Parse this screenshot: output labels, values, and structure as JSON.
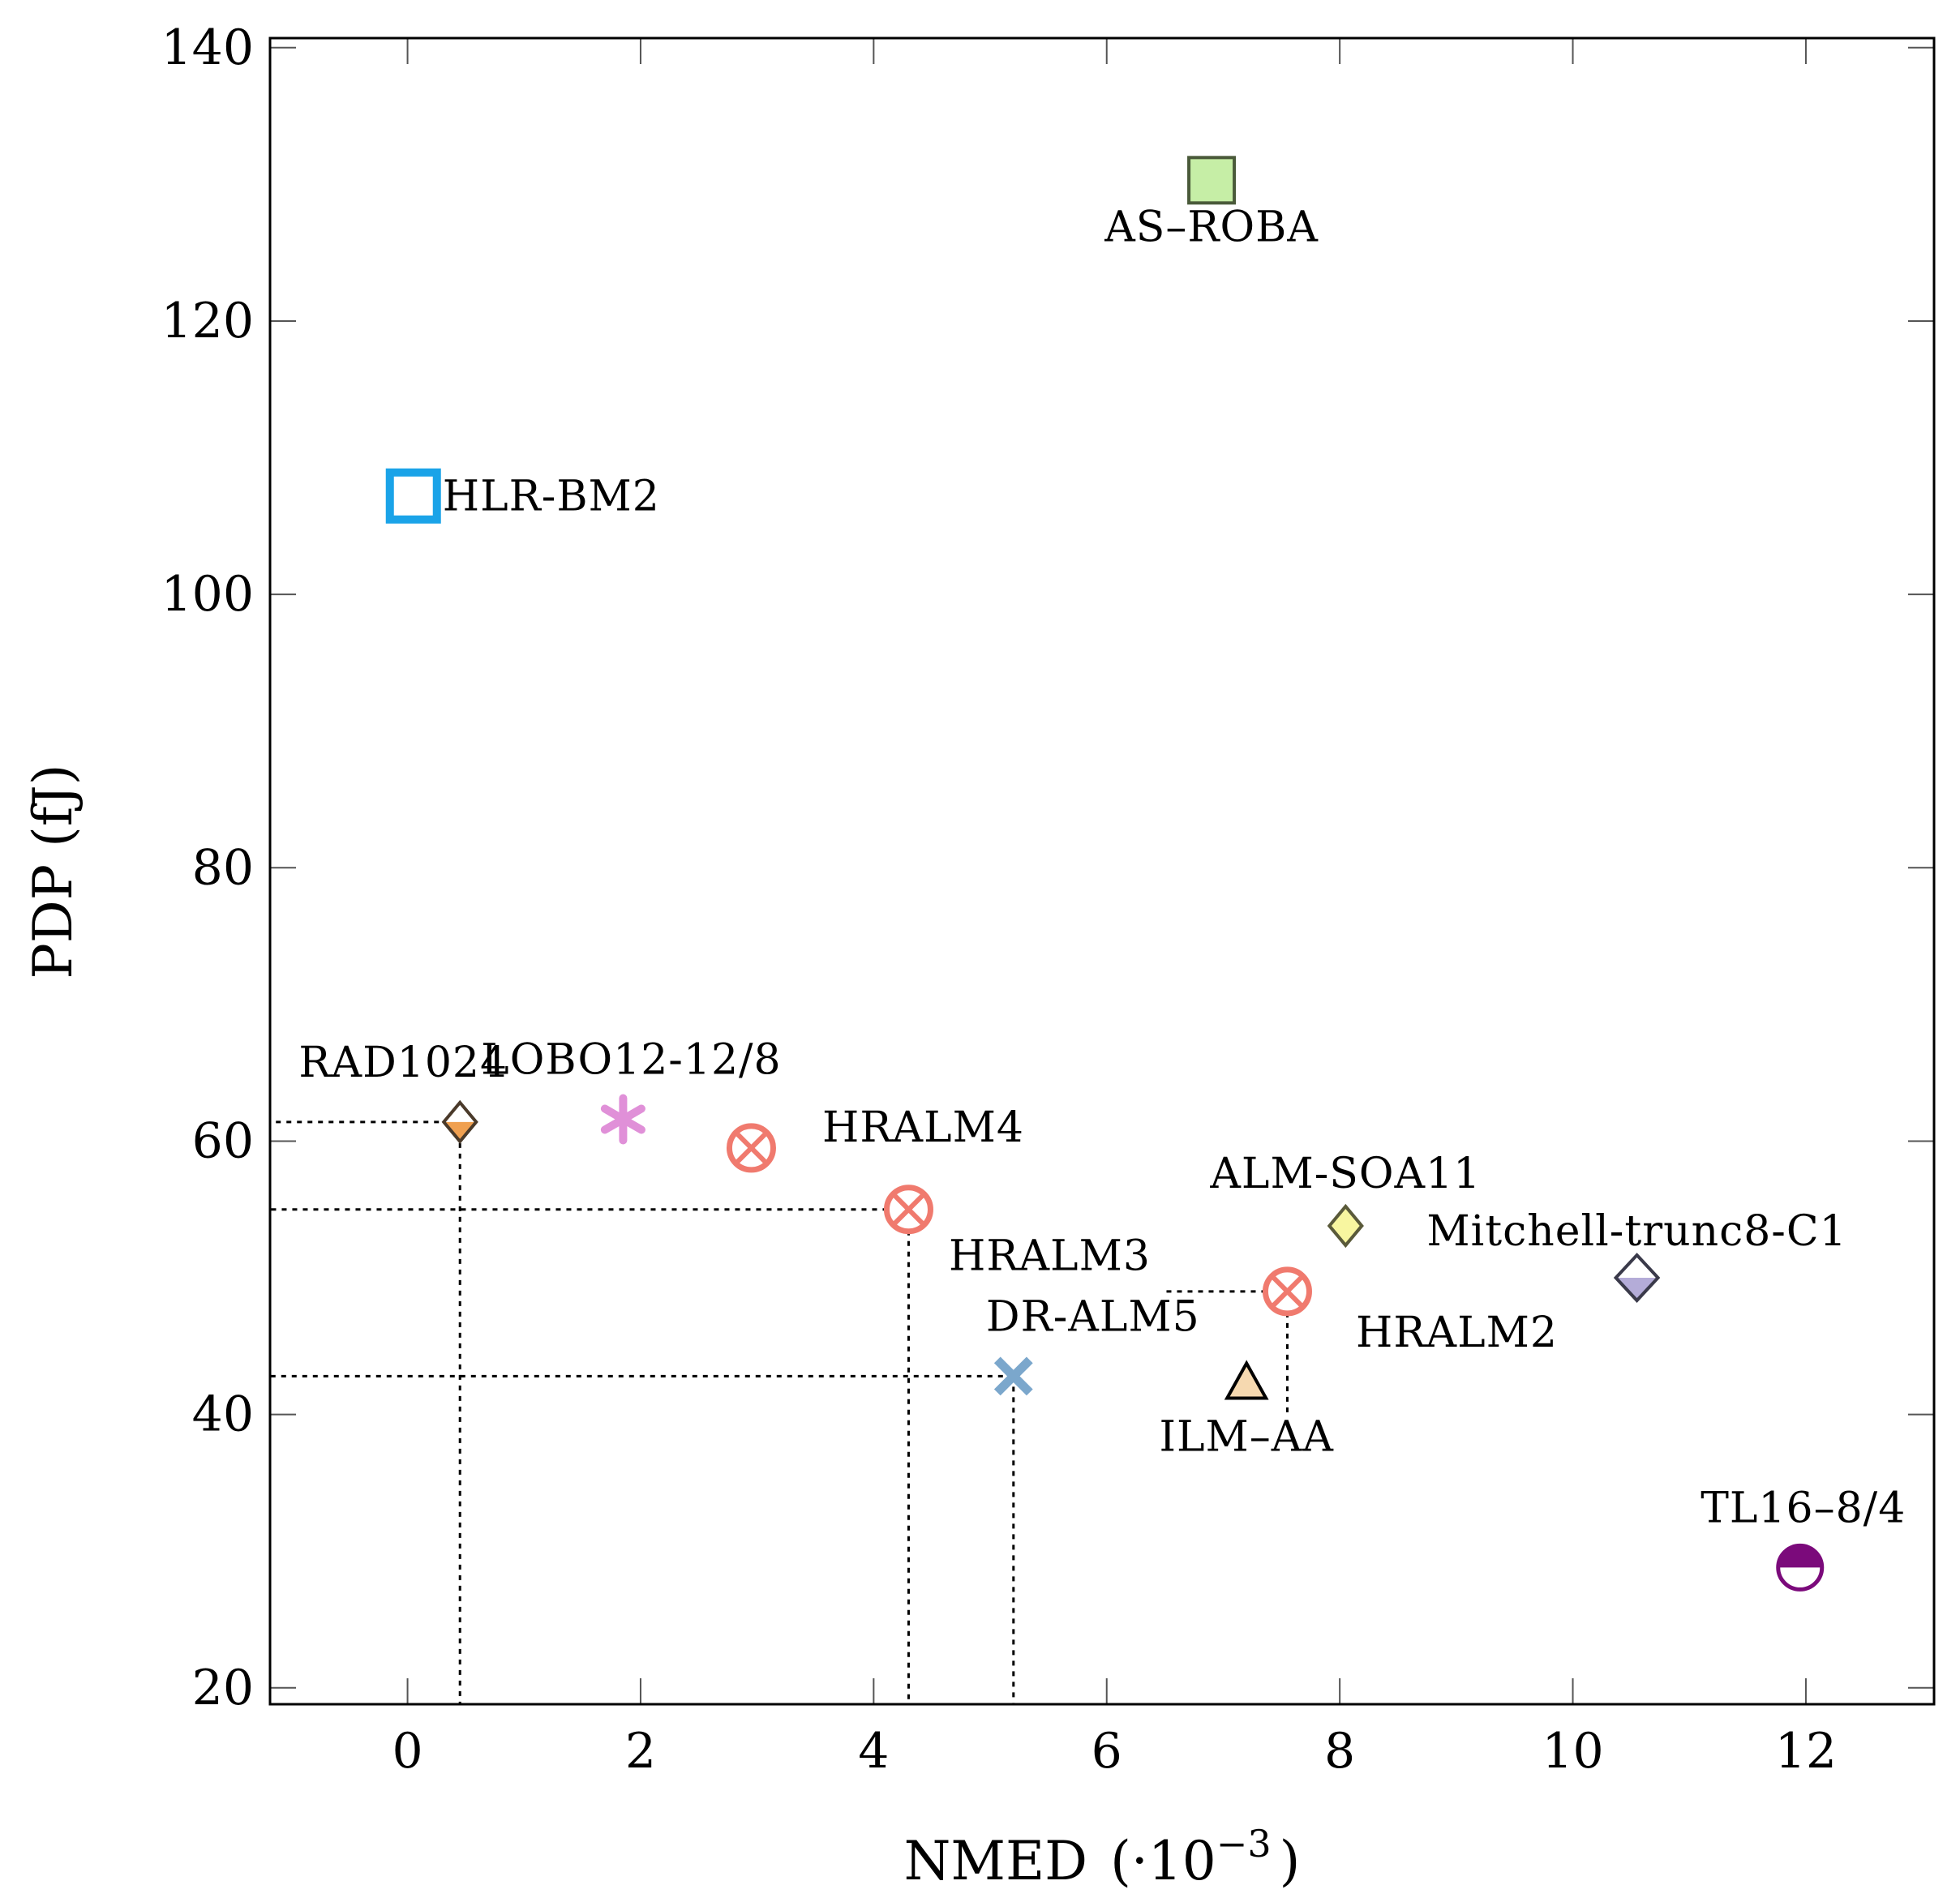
{
  "chart_data": {
    "type": "scatter",
    "title": "",
    "xlabel": "NMED",
    "xlabel_unit_prefix": "(·10",
    "xlabel_unit_exp": "−3",
    "xlabel_unit_suffix": ")",
    "ylabel": "PDP (fJ)",
    "xlim": [
      -1.18,
      13.1
    ],
    "ylim": [
      18.8,
      140.7
    ],
    "xticks": [
      0,
      2,
      4,
      6,
      8,
      10,
      12
    ],
    "yticks": [
      20,
      40,
      60,
      80,
      100,
      120,
      140
    ],
    "grid": false,
    "points": [
      {
        "id": "as-roba",
        "label": "AS–ROBA",
        "x": 6.9,
        "y": 130.3,
        "marker": "square",
        "fill": "#c6eea6",
        "stroke": "#4a5a3a",
        "label_pos": "below"
      },
      {
        "id": "hlr-bm2",
        "label": "HLR-BM2",
        "x": 0.05,
        "y": 107.2,
        "marker": "square-open",
        "fill": "#ffffff",
        "stroke": "#1aa3e8",
        "label_pos": "right"
      },
      {
        "id": "rad1024",
        "label": "RAD1024",
        "x": 0.45,
        "y": 61.4,
        "marker": "diamond-half",
        "fill": "#f0a050",
        "stroke": "#4a3a2a",
        "label_pos": "above-left"
      },
      {
        "id": "lobo12",
        "label": "LOBO12-12/8",
        "x": 1.85,
        "y": 61.6,
        "marker": "asterisk",
        "fill": "#e090d8",
        "stroke": "#e090d8",
        "label_pos": "above"
      },
      {
        "id": "hralm4",
        "label": "HRALM4",
        "x": 2.95,
        "y": 59.5,
        "marker": "otimes",
        "fill": "#ffffff",
        "stroke": "#f07a6e",
        "label_pos": "right-above"
      },
      {
        "id": "hralm3",
        "label": "HRALM3",
        "x": 4.3,
        "y": 55.0,
        "marker": "otimes",
        "fill": "#ffffff",
        "stroke": "#f07a6e",
        "label_pos": "below-right"
      },
      {
        "id": "dr-alm5",
        "label": "DR-ALM5",
        "x": 5.2,
        "y": 42.8,
        "marker": "x",
        "fill": "#7ba7cc",
        "stroke": "#7ba7cc",
        "label_pos": "above"
      },
      {
        "id": "ilm-aa",
        "label": "ILM–AA",
        "x": 7.2,
        "y": 42.2,
        "marker": "triangle",
        "fill": "#f6d9b0",
        "stroke": "#000000",
        "label_pos": "below"
      },
      {
        "id": "hralm2",
        "label": "HRALM2",
        "x": 7.55,
        "y": 49.0,
        "marker": "otimes",
        "fill": "#ffffff",
        "stroke": "#f07a6e",
        "label_pos": "below-right"
      },
      {
        "id": "alm-soa11",
        "label": "ALM-SOA11",
        "x": 8.05,
        "y": 53.8,
        "marker": "diamond",
        "fill": "#f8f6a0",
        "stroke": "#5a5a3a",
        "label_pos": "above"
      },
      {
        "id": "mitchell",
        "label": "Mitchell-trunc8-C1",
        "x": 10.55,
        "y": 50.0,
        "marker": "diamond-half",
        "fill": "#b4acd8",
        "stroke": "#3a3a4a",
        "label_pos": "above"
      },
      {
        "id": "tl16",
        "label": "TL16–8/4",
        "x": 11.95,
        "y": 28.8,
        "marker": "circle-half",
        "fill": "#7b0a7b",
        "stroke": "#7b0a7b",
        "label_pos": "above"
      }
    ],
    "guide_lines": [
      {
        "from": "rad1024",
        "to_x_axis": true,
        "to_y_axis": true
      },
      {
        "from": "hralm3",
        "to_x_axis": true,
        "to_y_axis": true
      },
      {
        "from": "dr-alm5",
        "to_x_axis": true,
        "to_y_axis": true
      },
      {
        "from": "hralm2",
        "y_segment_to": 40.0,
        "x_segment_from": 6.5
      }
    ]
  }
}
